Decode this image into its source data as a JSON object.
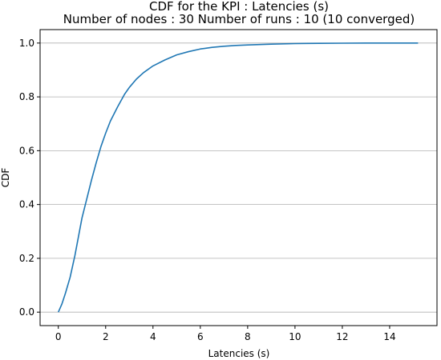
{
  "chart_data": {
    "type": "line",
    "title": "CDF for the KPI : Latencies (s)",
    "subtitle": "Number of nodes : 30   Number of runs : 10 (10 converged)",
    "xlabel": "Latencies (s)",
    "ylabel": "CDF",
    "xlim": [
      -0.77,
      16.0
    ],
    "ylim": [
      -0.05,
      1.05
    ],
    "xticks": [
      0,
      2,
      4,
      6,
      8,
      10,
      12,
      14
    ],
    "xtick_labels": [
      "0",
      "2",
      "4",
      "6",
      "8",
      "10",
      "12",
      "14"
    ],
    "yticks": [
      0.0,
      0.2,
      0.4,
      0.6,
      0.8,
      1.0
    ],
    "ytick_labels": [
      "0.0",
      "0.2",
      "0.4",
      "0.6",
      "0.8",
      "1.0"
    ],
    "grid": "horizontal",
    "series": [
      {
        "color": "#1f77b4",
        "x": [
          0,
          0.15,
          0.3,
          0.5,
          0.7,
          0.85,
          1.0,
          1.2,
          1.4,
          1.6,
          1.8,
          2.0,
          2.2,
          2.5,
          2.8,
          3.0,
          3.3,
          3.6,
          4.0,
          4.5,
          5.0,
          5.5,
          6.0,
          6.5,
          7.0,
          7.5,
          8.0,
          9.0,
          10.0,
          11.0,
          12.0,
          13.0,
          14.0,
          15.2
        ],
        "y": [
          0.0,
          0.03,
          0.07,
          0.13,
          0.21,
          0.28,
          0.35,
          0.42,
          0.49,
          0.555,
          0.615,
          0.665,
          0.71,
          0.762,
          0.81,
          0.835,
          0.866,
          0.89,
          0.915,
          0.937,
          0.956,
          0.968,
          0.978,
          0.984,
          0.988,
          0.991,
          0.993,
          0.996,
          0.998,
          0.999,
          0.9995,
          1.0,
          1.0,
          1.0
        ]
      }
    ]
  }
}
